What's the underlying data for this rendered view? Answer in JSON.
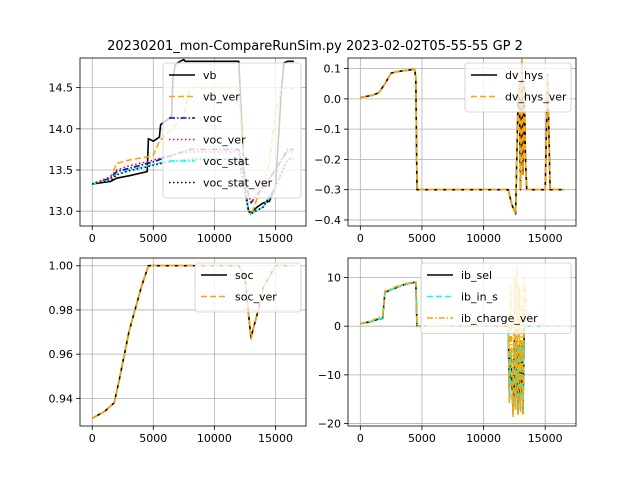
{
  "figure": {
    "suptitle": "20230201_mon-CompareRunSim.py   2023-02-02T05-55-55 GP 2"
  },
  "chart_data": [
    {
      "type": "line",
      "panel": "top-left",
      "xlim": [
        -1000,
        17500
      ],
      "ylim": [
        12.82,
        14.86
      ],
      "xticks": [
        0,
        5000,
        10000,
        15000
      ],
      "yticks": [
        13.0,
        13.5,
        14.0,
        14.5
      ],
      "ytick_labels": [
        "13.0",
        "13.5",
        "14.0",
        "14.5"
      ],
      "grid": true,
      "legend_position": "top-right",
      "series": [
        {
          "name": "vb",
          "color": "#000000",
          "dash": "solid",
          "x": [
            0,
            1500,
            2000,
            3000,
            4500,
            4600,
            5000,
            5500,
            5600,
            6500,
            6600,
            6800,
            7200,
            7500,
            7600,
            8000,
            9000,
            10000,
            11000,
            12000,
            12200,
            12500,
            12800,
            13000,
            13500,
            14000,
            14500,
            15000,
            15500,
            15700,
            16000,
            16500
          ],
          "y": [
            13.33,
            13.36,
            13.4,
            13.43,
            13.48,
            13.88,
            13.85,
            13.9,
            14.05,
            14.15,
            14.6,
            14.78,
            14.82,
            14.84,
            14.82,
            14.82,
            14.82,
            14.82,
            14.82,
            14.82,
            14.2,
            13.3,
            13.0,
            12.98,
            13.05,
            13.1,
            13.12,
            13.3,
            14.5,
            14.8,
            14.82,
            14.82
          ]
        },
        {
          "name": "vb_ver",
          "color": "#ffa500",
          "dash": "dashed",
          "x": [
            0,
            1500,
            2000,
            3000,
            4500,
            5000,
            5500,
            6500,
            7500,
            8000,
            9000,
            10000,
            11000,
            12000,
            12200,
            12500,
            12800,
            13000,
            13500,
            14000,
            14500,
            15000,
            15500,
            16000,
            16500
          ],
          "y": [
            13.33,
            13.4,
            13.58,
            13.62,
            13.66,
            13.68,
            13.85,
            14.0,
            14.15,
            14.5,
            14.5,
            14.5,
            14.5,
            14.5,
            14.0,
            13.3,
            13.0,
            12.95,
            13.15,
            13.3,
            13.6,
            14.2,
            14.48,
            14.5,
            14.48
          ]
        },
        {
          "name": "voc",
          "color": "#0000cd",
          "dash": "dashdot",
          "x": [
            0,
            1500,
            2000,
            3000,
            4500,
            5000,
            6000,
            7000,
            8000,
            10000,
            12000,
            12800,
            13000,
            14000,
            15000,
            16000,
            16500
          ],
          "y": [
            13.33,
            13.4,
            13.48,
            13.52,
            13.58,
            13.6,
            13.65,
            13.7,
            13.75,
            13.75,
            13.75,
            13.2,
            13.1,
            13.3,
            13.5,
            13.75,
            13.75
          ]
        },
        {
          "name": "voc_ver",
          "color": "#ff0000",
          "dash": "dotted",
          "x": [
            0,
            1500,
            2000,
            3000,
            4500,
            5000,
            6000,
            7000,
            8000,
            10000,
            12000,
            12800,
            13000,
            14000,
            15000,
            16000,
            16500
          ],
          "y": [
            13.33,
            13.42,
            13.5,
            13.55,
            13.6,
            13.62,
            13.66,
            13.7,
            13.72,
            13.72,
            13.72,
            13.2,
            13.1,
            13.3,
            13.5,
            13.72,
            13.72
          ]
        },
        {
          "name": "voc_stat",
          "color": "#00ffff",
          "dash": "dashdot",
          "x": [
            0,
            1500,
            2000,
            3000,
            4500,
            5000,
            6000,
            7000,
            8000,
            10000,
            12000,
            12800,
            13000,
            14000,
            15000,
            16000,
            16500
          ],
          "y": [
            13.33,
            13.38,
            13.45,
            13.5,
            13.55,
            13.57,
            13.6,
            13.62,
            13.64,
            13.64,
            13.64,
            13.0,
            12.97,
            13.05,
            13.3,
            13.64,
            13.64
          ]
        },
        {
          "name": "voc_stat_ver",
          "color": "#000000",
          "dash": "dotted",
          "x": [
            0,
            1500,
            2000,
            3000,
            4500,
            5000,
            6000,
            7000,
            8000,
            10000,
            12000,
            12800,
            13000,
            14000,
            15000,
            16000,
            16500
          ],
          "y": [
            13.33,
            13.37,
            13.44,
            13.49,
            13.54,
            13.56,
            13.59,
            13.61,
            13.63,
            13.63,
            13.63,
            13.0,
            12.97,
            13.05,
            13.3,
            13.63,
            13.63
          ]
        }
      ]
    },
    {
      "type": "line",
      "panel": "top-right",
      "xlim": [
        -1000,
        17500
      ],
      "ylim": [
        -0.42,
        0.135
      ],
      "xticks": [
        0,
        5000,
        10000,
        15000
      ],
      "yticks": [
        -0.4,
        -0.3,
        -0.2,
        -0.1,
        0.0,
        0.1
      ],
      "ytick_labels": [
        "−0.4",
        "−0.3",
        "−0.2",
        "−0.1",
        "0.0",
        "0.1"
      ],
      "grid": true,
      "legend_position": "top-right",
      "series": [
        {
          "name": "dv_hys",
          "color": "#000000",
          "dash": "solid",
          "x": [
            0,
            500,
            1000,
            1500,
            2000,
            2500,
            3000,
            3500,
            4000,
            4400,
            4500,
            4600,
            10000,
            12000,
            12300,
            12600,
            12800,
            12900,
            13000,
            13100,
            13200,
            13300,
            13400,
            13500,
            13700,
            15000,
            15200,
            15400,
            16000,
            16500
          ],
          "y": [
            0.005,
            0.008,
            0.012,
            0.02,
            0.05,
            0.085,
            0.09,
            0.093,
            0.095,
            0.098,
            0.07,
            -0.3,
            -0.3,
            -0.3,
            -0.35,
            -0.38,
            0.0,
            0.05,
            -0.3,
            0.13,
            -0.25,
            0.05,
            -0.2,
            -0.3,
            -0.3,
            -0.3,
            0.08,
            -0.3,
            -0.3,
            -0.3
          ]
        },
        {
          "name": "dv_hys_ver",
          "color": "#ffa500",
          "dash": "dashed",
          "x": [
            0,
            500,
            1000,
            1500,
            2000,
            2500,
            3000,
            3500,
            4000,
            4400,
            4500,
            4600,
            10000,
            12000,
            12300,
            12600,
            12800,
            12900,
            13000,
            13100,
            13200,
            13300,
            13400,
            13500,
            13700,
            15000,
            15200,
            15400,
            16000,
            16500
          ],
          "y": [
            0.005,
            0.008,
            0.012,
            0.02,
            0.05,
            0.085,
            0.09,
            0.093,
            0.095,
            0.098,
            0.07,
            -0.3,
            -0.3,
            -0.3,
            -0.35,
            -0.38,
            0.0,
            0.05,
            -0.3,
            0.13,
            -0.25,
            0.05,
            -0.2,
            -0.3,
            -0.3,
            -0.3,
            0.08,
            -0.3,
            -0.3,
            -0.3
          ]
        }
      ]
    },
    {
      "type": "line",
      "panel": "bottom-left",
      "xlim": [
        -1000,
        17500
      ],
      "ylim": [
        0.9275,
        1.0035
      ],
      "xticks": [
        0,
        5000,
        10000,
        15000
      ],
      "yticks": [
        0.94,
        0.96,
        0.98,
        1.0
      ],
      "ytick_labels": [
        "0.94",
        "0.96",
        "0.98",
        "1.00"
      ],
      "grid": true,
      "legend_position": "top-right",
      "series": [
        {
          "name": "soc",
          "color": "#000000",
          "dash": "solid",
          "x": [
            0,
            1000,
            1800,
            2200,
            3000,
            4000,
            4600,
            5000,
            10000,
            12000,
            12500,
            13000,
            13200,
            13600,
            14000,
            15000,
            16000,
            16500
          ],
          "y": [
            0.931,
            0.934,
            0.938,
            0.948,
            0.97,
            0.99,
            1.0,
            1.0,
            1.0,
            1.0,
            0.995,
            0.967,
            0.972,
            0.98,
            0.99,
            1.0,
            1.0,
            1.0
          ]
        },
        {
          "name": "soc_ver",
          "color": "#ffa500",
          "dash": "dashed",
          "x": [
            0,
            1000,
            1800,
            2200,
            3000,
            4000,
            4600,
            5000,
            10000,
            12000,
            12500,
            13000,
            13200,
            13600,
            14000,
            15000,
            16000,
            16500
          ],
          "y": [
            0.931,
            0.934,
            0.938,
            0.948,
            0.97,
            0.99,
            1.0,
            1.0,
            1.0,
            1.0,
            0.995,
            0.967,
            0.972,
            0.98,
            0.99,
            1.0,
            1.0,
            1.0
          ]
        }
      ]
    },
    {
      "type": "line",
      "panel": "bottom-right",
      "xlim": [
        -1000,
        17500
      ],
      "ylim": [
        -20.5,
        14.0
      ],
      "xticks": [
        0,
        5000,
        10000,
        15000
      ],
      "yticks": [
        -20,
        -10,
        0,
        10
      ],
      "ytick_labels": [
        "−20",
        "−10",
        "0",
        "10"
      ],
      "grid": true,
      "legend_position": "top-right",
      "series": [
        {
          "name": "ib_sel",
          "color": "#000000",
          "dash": "solid",
          "x": [
            0,
            1000,
            1500,
            1800,
            2000,
            2500,
            3000,
            3500,
            4000,
            4400,
            4500,
            4600,
            10000,
            12000,
            12100,
            12200,
            12400,
            12500,
            12600,
            12700,
            12800,
            12900,
            13000,
            13100,
            13200,
            13300,
            13500,
            15000,
            16500,
            17000
          ],
          "y": [
            0.5,
            1.0,
            1.5,
            1.5,
            7.0,
            7.5,
            8.0,
            8.5,
            8.8,
            9.0,
            9.0,
            0.0,
            0.0,
            0.0,
            -15.0,
            -5.0,
            -18.0,
            -3.0,
            -17.0,
            -2.0,
            -18.0,
            -4.0,
            -17.0,
            -3.0,
            -18.0,
            0.0,
            0.0,
            0.0,
            0.0,
            0.0
          ]
        },
        {
          "name": "ib_in_s",
          "color": "#00ffff",
          "dash": "dashed",
          "x": [
            0,
            1000,
            1500,
            1800,
            2000,
            2500,
            3000,
            3500,
            4000,
            4400,
            4500,
            4600,
            10000,
            12000,
            12100,
            12200,
            12400,
            12500,
            12600,
            12700,
            12800,
            12900,
            13000,
            13100,
            13200,
            13300,
            13500,
            15000,
            16500,
            17000
          ],
          "y": [
            0.5,
            1.0,
            1.5,
            1.5,
            7.0,
            7.5,
            8.0,
            8.5,
            8.8,
            9.0,
            9.0,
            0.0,
            0.0,
            0.0,
            -15.0,
            -5.0,
            -18.0,
            -3.0,
            -17.0,
            -2.0,
            -18.0,
            -4.0,
            -17.0,
            -3.0,
            -18.0,
            0.0,
            0.0,
            0.0,
            0.0,
            0.0
          ]
        },
        {
          "name": "ib_charge_ver",
          "color": "#ffa500",
          "dash": "dashdot",
          "x": [
            0,
            1000,
            1500,
            1800,
            2000,
            2500,
            3000,
            3500,
            4000,
            4400,
            4500,
            4600,
            10000,
            12000,
            12100,
            12200,
            12400,
            12500,
            12600,
            12700,
            12800,
            12900,
            13000,
            13100,
            13200,
            13300,
            13500,
            15000,
            16500,
            17000
          ],
          "y": [
            0.5,
            1.2,
            1.8,
            2.0,
            7.2,
            7.7,
            8.2,
            8.6,
            8.9,
            9.1,
            9.1,
            0.0,
            0.0,
            0.0,
            -16.0,
            8.0,
            -18.5,
            10.0,
            -17.0,
            12.0,
            -18.0,
            8.0,
            -17.5,
            6.0,
            -18.0,
            10.0,
            2.0,
            0.0,
            0.0,
            0.0
          ]
        }
      ]
    }
  ]
}
